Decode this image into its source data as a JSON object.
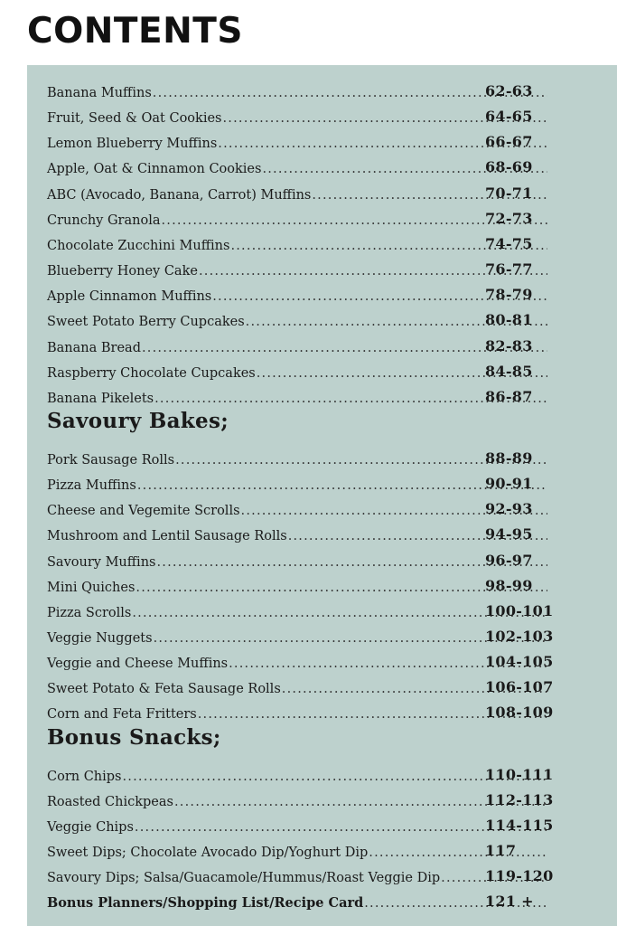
{
  "title": "CONTENTS",
  "sections": [
    {
      "heading": "",
      "items": [
        {
          "label": "Banana Muffins",
          "pages": "62-63"
        },
        {
          "label": "Fruit, Seed & Oat Cookies",
          "pages": "64-65"
        },
        {
          "label": "Lemon Blueberry Muffins",
          "pages": "66-67"
        },
        {
          "label": "Apple, Oat & Cinnamon Cookies",
          "pages": "68-69"
        },
        {
          "label": "ABC (Avocado, Banana, Carrot) Muffins",
          "pages": "70-71"
        },
        {
          "label": "Crunchy Granola",
          "pages": "72-73"
        },
        {
          "label": "Chocolate Zucchini Muffins",
          "pages": "74-75"
        },
        {
          "label": "Blueberry Honey Cake",
          "pages": "76-77"
        },
        {
          "label": "Apple Cinnamon Muffins",
          "pages": "78-79"
        },
        {
          "label": "Sweet Potato Berry Cupcakes",
          "pages": "80-81"
        },
        {
          "label": "Banana Bread",
          "pages": "82-83"
        },
        {
          "label": "Raspberry Chocolate Cupcakes",
          "pages": "84-85"
        },
        {
          "label": "Banana Pikelets",
          "pages": "86-87"
        }
      ]
    },
    {
      "heading": "Savoury Bakes;",
      "items": [
        {
          "label": "Pork Sausage Rolls",
          "pages": "88-89"
        },
        {
          "label": "Pizza Muffins",
          "pages": "90-91"
        },
        {
          "label": "Cheese and Vegemite Scrolls",
          "pages": "92-93"
        },
        {
          "label": "Mushroom and Lentil Sausage Rolls",
          "pages": "94-95"
        },
        {
          "label": "Savoury Muffins",
          "pages": "96-97"
        },
        {
          "label": "Mini Quiches",
          "pages": "98-99"
        },
        {
          "label": "Pizza Scrolls",
          "pages": "100-101"
        },
        {
          "label": "Veggie Nuggets",
          "pages": "102-103"
        },
        {
          "label": "Veggie and Cheese Muffins",
          "pages": "104-105"
        },
        {
          "label": "Sweet Potato & Feta Sausage Rolls",
          "pages": "106-107"
        },
        {
          "label": "Corn and Feta Fritters",
          "pages": "108-109"
        }
      ]
    },
    {
      "heading": "Bonus Snacks;",
      "items": [
        {
          "label": "Corn Chips",
          "pages": "110-111"
        },
        {
          "label": "Roasted Chickpeas",
          "pages": "112-113"
        },
        {
          "label": "Veggie Chips",
          "pages": "114-115"
        },
        {
          "label_bold": "Sweet Dips;",
          "label": " Chocolate Avocado Dip/Yoghurt Dip",
          "pages": "117"
        },
        {
          "label_bold": "Savoury Dips;",
          "label": " Salsa/Guacamole/Hummus/Roast Veggie Dip",
          "pages": "119-120"
        },
        {
          "label_bold": "Bonus Planners/Shopping List/Recipe Card",
          "label": "",
          "pages": "121 +"
        }
      ]
    }
  ],
  "colors": {
    "panel": "#bdd1cd",
    "text": "#1a1a1a"
  }
}
